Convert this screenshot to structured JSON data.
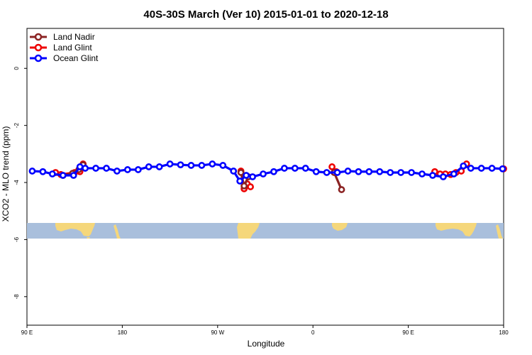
{
  "chart_data": {
    "type": "line",
    "title": "40S-30S March (Ver 10)   2015-01-01 to 2020-12-18",
    "xlabel": "Longitude",
    "ylabel": "XCO2 - MLO trend (ppm)",
    "xlim": [
      90,
      540
    ],
    "ylim": [
      -9,
      1.4
    ],
    "x_ticks": [
      {
        "value": 90,
        "label": "90 E"
      },
      {
        "value": 180,
        "label": "180"
      },
      {
        "value": 270,
        "label": "90 W"
      },
      {
        "value": 360,
        "label": "0"
      },
      {
        "value": 450,
        "label": "90 E"
      },
      {
        "value": 540,
        "label": "180"
      }
    ],
    "y_ticks": [
      {
        "value": 0,
        "label": "0"
      },
      {
        "value": -2,
        "label": "-2"
      },
      {
        "value": -4,
        "label": "-4"
      },
      {
        "value": -6,
        "label": "-6"
      },
      {
        "value": -8,
        "label": "-8"
      }
    ],
    "map_strip": {
      "y_range": [
        -5.85,
        -5.3
      ],
      "ocean_color": "#a9bfdc",
      "land_color": "#f5d77b"
    },
    "legend": {
      "position": "top-left",
      "entries": [
        {
          "name": "Land Nadir",
          "color": "#8b2323"
        },
        {
          "name": "Land Glint",
          "color": "#ee0000"
        },
        {
          "name": "Ocean Glint",
          "color": "#0000ff"
        }
      ]
    },
    "series": [
      {
        "name": "Land Glint",
        "color": "#ee0000",
        "segments": [
          {
            "x": [
              117,
              122,
              135,
              140,
              143
            ],
            "y": [
              -3.65,
              -3.72,
              -3.65,
              -3.62,
              -3.35
            ]
          },
          {
            "x": [
              292,
              295,
              298,
              301
            ],
            "y": [
              -3.6,
              -4.22,
              -4.05,
              -4.15
            ]
          },
          {
            "x": [
              378,
              382
            ],
            "y": [
              -3.45,
              -3.62
            ]
          },
          {
            "x": [
              475,
              480,
              485,
              490,
              495,
              500,
              505
            ],
            "y": [
              -3.62,
              -3.7,
              -3.7,
              -3.72,
              -3.65,
              -3.6,
              -3.35
            ]
          },
          {
            "x": [
              540
            ],
            "y": [
              -3.52
            ]
          }
        ]
      },
      {
        "name": "Land Nadir",
        "color": "#8b2323",
        "segments": [
          {
            "x": [
              124,
              133,
              139,
              143
            ],
            "y": [
              -3.75,
              -3.68,
              -3.55,
              -3.38
            ]
          },
          {
            "x": [
              292,
              295,
              299
            ],
            "y": [
              -3.65,
              -4.12,
              -3.8
            ]
          },
          {
            "x": [
              380,
              387
            ],
            "y": [
              -3.65,
              -4.25
            ]
          }
        ]
      },
      {
        "name": "Ocean Glint",
        "color": "#0000ff",
        "segments": [
          {
            "x": [
              95,
              105,
              114,
              124,
              134,
              140,
              145,
              155,
              165,
              175,
              185,
              195,
              205,
              215,
              225,
              235,
              245,
              255,
              265,
              275,
              285,
              291,
              297,
              303,
              313,
              323,
              333,
              343,
              353,
              363,
              373,
              383,
              393,
              403,
              413,
              423,
              433,
              443,
              453,
              463,
              473,
              483,
              493,
              502,
              509,
              519,
              529,
              539
            ],
            "y": [
              -3.6,
              -3.62,
              -3.7,
              -3.75,
              -3.75,
              -3.45,
              -3.5,
              -3.5,
              -3.5,
              -3.6,
              -3.55,
              -3.55,
              -3.45,
              -3.45,
              -3.35,
              -3.38,
              -3.4,
              -3.4,
              -3.35,
              -3.4,
              -3.6,
              -3.95,
              -3.75,
              -3.8,
              -3.7,
              -3.62,
              -3.5,
              -3.5,
              -3.5,
              -3.62,
              -3.65,
              -3.65,
              -3.6,
              -3.62,
              -3.62,
              -3.62,
              -3.65,
              -3.65,
              -3.65,
              -3.7,
              -3.75,
              -3.8,
              -3.7,
              -3.42,
              -3.5,
              -3.5,
              -3.5,
              -3.52
            ]
          }
        ]
      }
    ]
  }
}
